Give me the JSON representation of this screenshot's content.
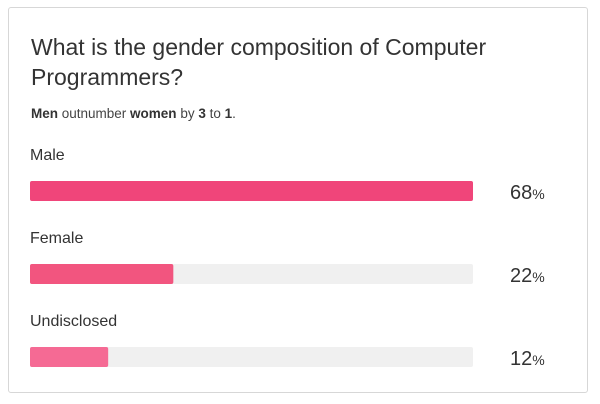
{
  "chart_data": {
    "type": "bar",
    "orientation": "horizontal",
    "title": "What is the gender composition of Computer Programmers?",
    "subtitle": {
      "parts": [
        "Men",
        " outnumber ",
        "women",
        " by ",
        "3",
        " to ",
        "1",
        "."
      ]
    },
    "categories": [
      "Male",
      "Female",
      "Undisclosed"
    ],
    "values": [
      68,
      22,
      12
    ],
    "value_suffix": "%",
    "xlim": [
      0,
      68
    ],
    "grid": false,
    "legend": "none",
    "colors": {
      "bars": [
        "#f0457a",
        "#f2557f",
        "#f56a94"
      ],
      "track": "#f0f0f0",
      "text": "#333333"
    }
  }
}
